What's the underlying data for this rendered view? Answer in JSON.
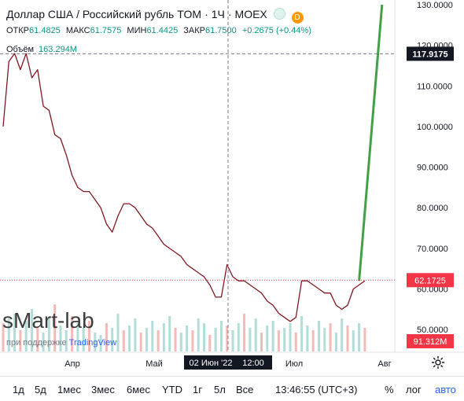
{
  "header": {
    "title": "Доллар США / Российский рубль TOM",
    "interval": "1Ч",
    "exchange": "MOEX",
    "status_badge": "D",
    "icons": [
      "eye-icon",
      "settings-icon"
    ]
  },
  "ohlc": {
    "open_label": "ОТКР",
    "open": "61.4825",
    "high_label": "МАКС",
    "high": "61.7575",
    "low_label": "МИН",
    "low": "61.4425",
    "close_label": "ЗАКР",
    "close": "61.7500",
    "change": "+0.2675 (+0.44%)"
  },
  "volume": {
    "label": "Объём",
    "value": "163.294M"
  },
  "watermark": "sMart-lab",
  "powered": {
    "prefix": "при поддержке",
    "brand": "TradingView"
  },
  "chart_data": {
    "type": "line",
    "y_ticks": [
      "130.0000",
      "120.0000",
      "110.0000",
      "100.0000",
      "90.0000",
      "80.0000",
      "70.0000",
      "60.0000",
      "50.0000"
    ],
    "ylim": [
      45,
      130
    ],
    "x_ticks": [
      "Апр",
      "Май",
      "Июл",
      "Авг"
    ],
    "crosshair": {
      "date_label": "02 Июн '22",
      "time_label": "12:00",
      "price": "117.9175"
    },
    "last_price": "62.1725",
    "last_volume": "91.312M",
    "series": [
      {
        "color": "#801922",
        "values": [
          [
            0,
            100
          ],
          [
            1,
            116
          ],
          [
            2,
            118
          ],
          [
            3,
            114
          ],
          [
            4,
            118
          ],
          [
            5,
            112
          ],
          [
            6,
            114
          ],
          [
            7,
            105
          ],
          [
            8,
            104
          ],
          [
            9,
            98
          ],
          [
            10,
            97
          ],
          [
            11,
            93
          ],
          [
            12,
            88
          ],
          [
            13,
            85
          ],
          [
            14,
            84
          ],
          [
            15,
            84
          ],
          [
            16,
            82
          ],
          [
            17,
            80
          ],
          [
            18,
            76
          ],
          [
            19,
            74
          ],
          [
            20,
            78
          ],
          [
            21,
            81
          ],
          [
            22,
            81
          ],
          [
            23,
            80
          ],
          [
            24,
            78
          ],
          [
            25,
            76
          ],
          [
            26,
            75
          ],
          [
            27,
            73
          ],
          [
            28,
            71
          ],
          [
            29,
            70
          ],
          [
            30,
            69
          ],
          [
            31,
            68
          ],
          [
            32,
            66
          ],
          [
            33,
            65
          ],
          [
            34,
            64
          ],
          [
            35,
            63
          ],
          [
            36,
            61
          ],
          [
            37,
            58
          ],
          [
            38,
            58
          ],
          [
            39,
            66
          ],
          [
            40,
            63
          ],
          [
            41,
            62
          ],
          [
            42,
            62
          ],
          [
            43,
            61
          ],
          [
            44,
            60
          ],
          [
            45,
            59
          ],
          [
            46,
            57
          ],
          [
            47,
            56
          ],
          [
            48,
            54
          ],
          [
            49,
            53
          ],
          [
            50,
            52
          ],
          [
            51,
            53
          ],
          [
            52,
            62
          ],
          [
            53,
            62
          ],
          [
            54,
            61
          ],
          [
            55,
            60
          ],
          [
            56,
            59
          ],
          [
            57,
            59
          ],
          [
            58,
            56
          ],
          [
            59,
            55
          ],
          [
            60,
            56
          ],
          [
            61,
            60
          ],
          [
            62,
            61
          ],
          [
            63,
            62
          ]
        ]
      },
      {
        "color": "#43a047",
        "values": [
          [
            62,
            62
          ],
          [
            66,
            130
          ]
        ]
      }
    ],
    "volume_bars": [
      12,
      14,
      16,
      9,
      13,
      18,
      10,
      8,
      14,
      20,
      11,
      9,
      15,
      12,
      10,
      13,
      8,
      7,
      12,
      10,
      16,
      9,
      11,
      14,
      8,
      10,
      13,
      9,
      12,
      15,
      10,
      8,
      11,
      9,
      14,
      12,
      7,
      10,
      13,
      11,
      9,
      12,
      16,
      10,
      14,
      8,
      11,
      13,
      9,
      10,
      12,
      8,
      15,
      11,
      9,
      13,
      10,
      12,
      8,
      14,
      11,
      9,
      12,
      10
    ]
  },
  "bottom_bar": {
    "ranges": [
      "1д",
      "5д",
      "1мес",
      "3мес",
      "6мес",
      "YTD",
      "1г",
      "5л",
      "Все"
    ],
    "clock": "13:46:55 (UTC+3)",
    "percent": "%",
    "log": "лог",
    "auto": "авто"
  }
}
